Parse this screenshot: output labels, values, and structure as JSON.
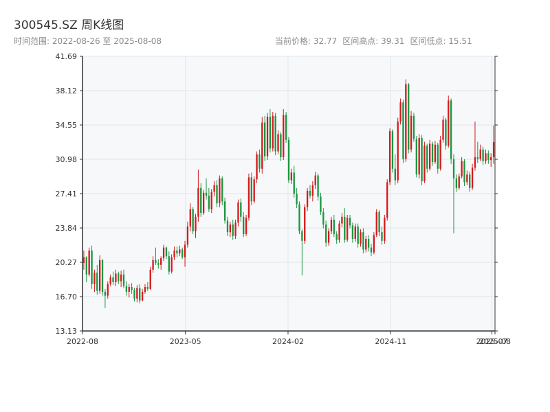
{
  "header": {
    "title": "300545.SZ 周K线图",
    "subtitle": "时间范围: 2022-08-26 至 2025-08-08",
    "current_price": "当前价格: 32.77",
    "range_high": "区间高点: 39.31",
    "range_low": "区间低点: 15.51"
  },
  "colors": {
    "up": "#d7191c",
    "down": "#1a9641",
    "grid": "#e2e6ea",
    "plot_bg": "#f7f8fa",
    "axis": "#333333"
  },
  "chart_data": {
    "type": "candlestick",
    "title": "300545.SZ 周K线图",
    "ylim": [
      13.13,
      41.69
    ],
    "y_ticks": [
      "13.13",
      "16.70",
      "20.27",
      "23.84",
      "27.41",
      "30.98",
      "34.55",
      "38.12",
      "41.69"
    ],
    "x_ticks": [
      "2022-08",
      "2023-05",
      "2024-02",
      "2024-11",
      "2025-07",
      "2025-08"
    ],
    "date_range": [
      "2022-08-26",
      "2025-08-08"
    ],
    "grid": true,
    "candles": [
      [
        20.2,
        21.5,
        19.5,
        20.8
      ],
      [
        20.8,
        20.9,
        18.2,
        19.0
      ],
      [
        19.0,
        21.8,
        18.8,
        21.5
      ],
      [
        21.5,
        22.0,
        17.5,
        18.0
      ],
      [
        18.0,
        19.5,
        17.2,
        19.2
      ],
      [
        19.2,
        20.0,
        16.9,
        17.3
      ],
      [
        17.3,
        21.0,
        17.0,
        20.5
      ],
      [
        20.5,
        20.6,
        16.8,
        17.2
      ],
      [
        17.2,
        17.5,
        15.5,
        16.8
      ],
      [
        16.8,
        18.3,
        16.5,
        18.0
      ],
      [
        18.0,
        19.0,
        17.8,
        18.7
      ],
      [
        18.7,
        19.3,
        17.9,
        18.2
      ],
      [
        18.2,
        19.5,
        17.8,
        19.1
      ],
      [
        19.1,
        19.3,
        18.0,
        18.3
      ],
      [
        18.3,
        19.4,
        17.7,
        19.0
      ],
      [
        19.0,
        19.5,
        17.6,
        17.8
      ],
      [
        17.8,
        18.3,
        16.8,
        17.2
      ],
      [
        17.2,
        18.0,
        16.6,
        17.7
      ],
      [
        17.7,
        18.1,
        17.0,
        17.4
      ],
      [
        17.4,
        17.6,
        16.2,
        16.5
      ],
      [
        16.5,
        17.9,
        16.1,
        17.6
      ],
      [
        17.6,
        18.0,
        16.0,
        16.3
      ],
      [
        16.3,
        17.5,
        16.2,
        17.2
      ],
      [
        17.2,
        18.0,
        17.0,
        17.7
      ],
      [
        17.7,
        18.2,
        17.3,
        17.5
      ],
      [
        17.5,
        19.8,
        17.4,
        19.5
      ],
      [
        19.5,
        20.9,
        19.2,
        20.5
      ],
      [
        20.5,
        21.8,
        20.0,
        20.2
      ],
      [
        20.2,
        20.6,
        19.6,
        20.0
      ],
      [
        20.0,
        20.9,
        19.5,
        20.7
      ],
      [
        20.7,
        22.1,
        20.4,
        21.8
      ],
      [
        21.8,
        21.9,
        20.6,
        20.9
      ],
      [
        20.9,
        21.4,
        19.0,
        19.3
      ],
      [
        19.3,
        21.1,
        19.1,
        20.8
      ],
      [
        20.8,
        21.9,
        20.5,
        21.5
      ],
      [
        21.5,
        21.9,
        20.8,
        21.2
      ],
      [
        21.2,
        22.0,
        20.9,
        21.6
      ],
      [
        21.6,
        21.8,
        20.6,
        20.8
      ],
      [
        20.8,
        22.5,
        19.8,
        22.1
      ],
      [
        22.1,
        24.5,
        21.8,
        24.0
      ],
      [
        24.0,
        26.4,
        23.5,
        25.8
      ],
      [
        25.8,
        26.0,
        23.2,
        23.5
      ],
      [
        23.5,
        25.3,
        22.8,
        25.0
      ],
      [
        25.0,
        29.9,
        24.5,
        28.0
      ],
      [
        28.0,
        28.5,
        25.0,
        25.4
      ],
      [
        25.4,
        27.8,
        25.2,
        27.5
      ],
      [
        27.5,
        29.0,
        26.8,
        27.2
      ],
      [
        27.2,
        28.0,
        25.5,
        25.8
      ],
      [
        25.8,
        27.9,
        25.4,
        27.6
      ],
      [
        27.6,
        28.7,
        27.1,
        28.3
      ],
      [
        28.3,
        28.8,
        26.0,
        26.4
      ],
      [
        26.4,
        29.3,
        26.0,
        29.0
      ],
      [
        29.0,
        29.2,
        26.2,
        26.6
      ],
      [
        26.6,
        27.0,
        24.3,
        24.6
      ],
      [
        24.6,
        25.0,
        23.0,
        23.4
      ],
      [
        23.4,
        24.5,
        22.9,
        24.2
      ],
      [
        24.2,
        24.7,
        22.6,
        23.0
      ],
      [
        23.0,
        24.7,
        22.7,
        24.4
      ],
      [
        24.4,
        26.8,
        24.0,
        26.5
      ],
      [
        26.5,
        26.9,
        24.5,
        25.0
      ],
      [
        25.0,
        25.5,
        22.9,
        23.2
      ],
      [
        23.2,
        25.2,
        23.0,
        24.9
      ],
      [
        24.9,
        29.5,
        24.6,
        29.1
      ],
      [
        29.1,
        29.6,
        26.2,
        26.6
      ],
      [
        26.6,
        29.2,
        26.4,
        28.9
      ],
      [
        28.9,
        31.8,
        28.5,
        31.5
      ],
      [
        31.5,
        32.0,
        29.6,
        30.0
      ],
      [
        30.0,
        35.4,
        29.5,
        34.8
      ],
      [
        34.8,
        35.5,
        30.8,
        31.3
      ],
      [
        31.3,
        35.8,
        30.9,
        35.4
      ],
      [
        35.4,
        36.2,
        31.7,
        32.1
      ],
      [
        32.1,
        35.9,
        31.8,
        35.5
      ],
      [
        35.5,
        35.8,
        31.4,
        31.8
      ],
      [
        31.8,
        34.0,
        31.5,
        33.6
      ],
      [
        33.6,
        33.8,
        30.8,
        31.2
      ],
      [
        31.2,
        36.2,
        30.9,
        35.6
      ],
      [
        35.6,
        35.9,
        32.7,
        33.0
      ],
      [
        33.0,
        33.3,
        28.5,
        28.8
      ],
      [
        28.8,
        30.0,
        28.4,
        29.6
      ],
      [
        29.6,
        30.3,
        27.0,
        27.4
      ],
      [
        27.4,
        28.0,
        25.9,
        26.3
      ],
      [
        26.3,
        26.6,
        23.2,
        23.5
      ],
      [
        23.5,
        23.7,
        18.9,
        22.5
      ],
      [
        22.5,
        26.3,
        22.2,
        26.0
      ],
      [
        26.0,
        28.0,
        25.6,
        27.7
      ],
      [
        27.7,
        28.3,
        26.9,
        27.2
      ],
      [
        27.2,
        28.7,
        26.6,
        28.3
      ],
      [
        28.3,
        29.7,
        27.9,
        29.3
      ],
      [
        29.3,
        29.5,
        26.7,
        27.1
      ],
      [
        27.1,
        27.5,
        25.2,
        25.5
      ],
      [
        25.5,
        25.9,
        23.8,
        24.2
      ],
      [
        24.2,
        24.6,
        21.9,
        22.3
      ],
      [
        22.3,
        23.8,
        22.0,
        23.5
      ],
      [
        23.5,
        25.0,
        23.2,
        24.7
      ],
      [
        24.7,
        25.2,
        22.9,
        23.2
      ],
      [
        23.2,
        23.5,
        22.2,
        22.6
      ],
      [
        22.6,
        24.6,
        22.3,
        24.3
      ],
      [
        24.3,
        25.4,
        23.9,
        25.0
      ],
      [
        25.0,
        25.9,
        22.3,
        22.6
      ],
      [
        22.6,
        25.2,
        22.4,
        24.9
      ],
      [
        24.9,
        25.2,
        23.8,
        24.1
      ],
      [
        24.1,
        24.4,
        22.3,
        22.7
      ],
      [
        22.7,
        24.3,
        22.4,
        24.0
      ],
      [
        24.0,
        24.3,
        21.8,
        22.2
      ],
      [
        22.2,
        23.7,
        21.9,
        23.4
      ],
      [
        23.4,
        23.8,
        21.2,
        21.6
      ],
      [
        21.6,
        23.0,
        21.3,
        22.7
      ],
      [
        22.7,
        23.1,
        21.4,
        21.8
      ],
      [
        21.8,
        22.2,
        20.9,
        21.3
      ],
      [
        21.3,
        23.4,
        21.1,
        23.1
      ],
      [
        23.1,
        25.8,
        22.9,
        25.5
      ],
      [
        25.5,
        25.7,
        23.0,
        23.4
      ],
      [
        23.4,
        24.0,
        22.1,
        22.5
      ],
      [
        22.5,
        25.2,
        22.2,
        24.9
      ],
      [
        24.9,
        28.9,
        24.6,
        28.6
      ],
      [
        28.6,
        34.2,
        28.3,
        33.9
      ],
      [
        33.9,
        34.1,
        29.6,
        30.0
      ],
      [
        30.0,
        31.5,
        28.3,
        28.8
      ],
      [
        28.8,
        35.3,
        28.5,
        34.9
      ],
      [
        34.9,
        37.3,
        34.6,
        36.9
      ],
      [
        36.9,
        37.2,
        30.6,
        31.0
      ],
      [
        31.0,
        39.3,
        30.7,
        38.8
      ],
      [
        38.8,
        38.9,
        31.6,
        32.0
      ],
      [
        32.0,
        36.0,
        31.7,
        35.5
      ],
      [
        35.5,
        35.8,
        32.8,
        33.1
      ],
      [
        33.1,
        33.4,
        29.1,
        29.4
      ],
      [
        29.4,
        33.6,
        29.0,
        33.2
      ],
      [
        33.2,
        33.5,
        28.3,
        28.7
      ],
      [
        28.7,
        32.8,
        28.5,
        32.4
      ],
      [
        32.4,
        32.6,
        29.6,
        30.0
      ],
      [
        30.0,
        33.0,
        29.8,
        32.6
      ],
      [
        32.6,
        32.8,
        30.3,
        30.7
      ],
      [
        30.7,
        32.9,
        30.5,
        32.5
      ],
      [
        32.5,
        32.7,
        29.5,
        30.0
      ],
      [
        30.0,
        33.4,
        29.8,
        33.0
      ],
      [
        33.0,
        35.5,
        32.7,
        35.1
      ],
      [
        35.1,
        35.3,
        32.0,
        32.4
      ],
      [
        32.4,
        37.6,
        32.2,
        37.1
      ],
      [
        37.1,
        37.3,
        30.5,
        31.0
      ],
      [
        31.0,
        31.5,
        23.3,
        29.0
      ],
      [
        29.0,
        29.4,
        27.6,
        28.0
      ],
      [
        28.0,
        29.5,
        27.8,
        29.2
      ],
      [
        29.2,
        31.2,
        29.0,
        30.8
      ],
      [
        30.8,
        31.0,
        28.2,
        28.6
      ],
      [
        28.6,
        29.8,
        28.3,
        29.4
      ],
      [
        29.4,
        29.7,
        27.6,
        28.0
      ],
      [
        28.0,
        30.5,
        27.8,
        30.1
      ],
      [
        30.1,
        34.9,
        29.8,
        31.2
      ],
      [
        31.2,
        32.8,
        30.6,
        31.0
      ],
      [
        31.0,
        32.5,
        30.8,
        32.0
      ],
      [
        32.0,
        32.3,
        30.4,
        30.8
      ],
      [
        30.8,
        32.0,
        30.5,
        31.6
      ],
      [
        31.6,
        31.9,
        30.5,
        30.9
      ],
      [
        30.9,
        31.6,
        30.2,
        31.2
      ],
      [
        31.2,
        34.5,
        30.5,
        32.77
      ]
    ]
  }
}
